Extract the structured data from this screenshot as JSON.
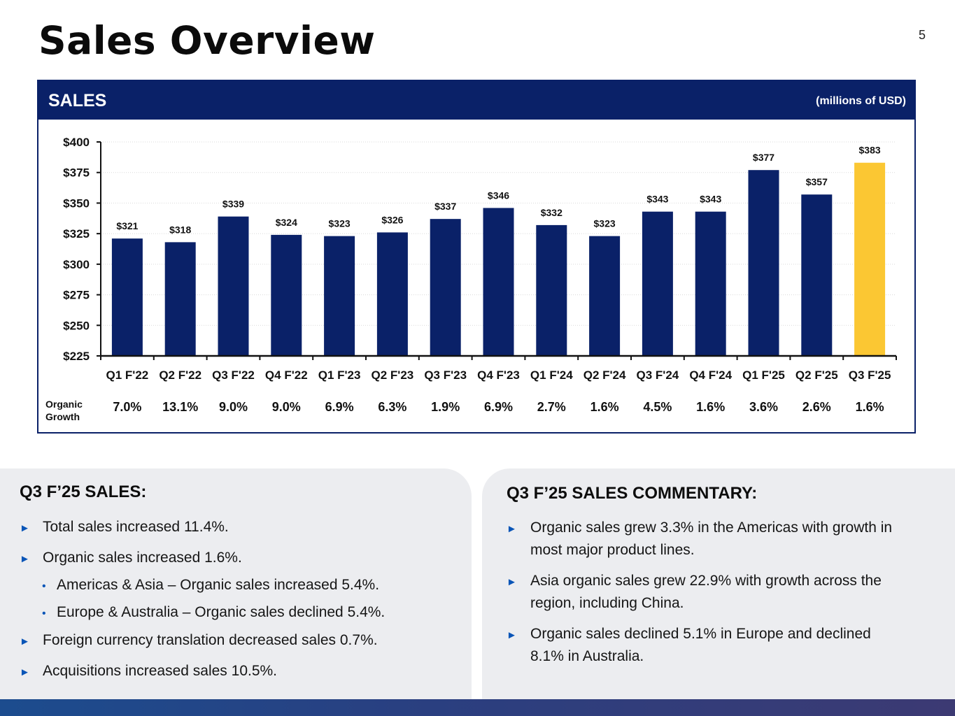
{
  "page": {
    "title": "Sales Overview",
    "page_number": "5"
  },
  "chart_header": {
    "title": "SALES",
    "unit": "(millions of USD)"
  },
  "chart_data": {
    "type": "bar",
    "categories": [
      "Q1 F'22",
      "Q2 F'22",
      "Q3 F'22",
      "Q4 F'22",
      "Q1 F'23",
      "Q2 F'23",
      "Q3 F'23",
      "Q4 F'23",
      "Q1 F'24",
      "Q2 F'24",
      "Q3 F'24",
      "Q4 F'24",
      "Q1 F'25",
      "Q2 F'25",
      "Q3 F'25"
    ],
    "values": [
      321,
      318,
      339,
      324,
      323,
      326,
      337,
      346,
      332,
      323,
      343,
      343,
      377,
      357,
      383
    ],
    "value_labels": [
      "$321",
      "$318",
      "$339",
      "$324",
      "$323",
      "$326",
      "$337",
      "$346",
      "$332",
      "$323",
      "$343",
      "$343",
      "$377",
      "$357",
      "$383"
    ],
    "ylim": [
      225,
      400
    ],
    "yticks": [
      225,
      250,
      275,
      300,
      325,
      350,
      375,
      400
    ],
    "ytick_labels": [
      "$225",
      "$250",
      "$275",
      "$300",
      "$325",
      "$350",
      "$375",
      "$400"
    ],
    "grid": true,
    "colors": {
      "bar": "#0a2168",
      "highlight": "#fbc733"
    },
    "highlight_index": 14,
    "organic_growth_label": [
      "Organic",
      "Growth"
    ],
    "organic_growth": [
      "7.0%",
      "13.1%",
      "9.0%",
      "9.0%",
      "6.9%",
      "6.3%",
      "1.9%",
      "6.9%",
      "2.7%",
      "1.6%",
      "4.5%",
      "1.6%",
      "3.6%",
      "2.6%",
      "1.6%"
    ]
  },
  "left_panel": {
    "heading": "Q3 F’25 SALES:",
    "items": [
      {
        "text": "Total sales increased 11.4%.",
        "level": 1
      },
      {
        "text": "Organic sales increased 1.6%.",
        "level": 1
      },
      {
        "text": "Americas & Asia – Organic sales increased 5.4%.",
        "level": 2
      },
      {
        "text": "Europe & Australia – Organic sales declined 5.4%.",
        "level": 2
      },
      {
        "text": "Foreign currency translation decreased sales 0.7%.",
        "level": 1
      },
      {
        "text": "Acquisitions increased sales 10.5%.",
        "level": 1
      }
    ]
  },
  "right_panel": {
    "heading": "Q3 F’25 SALES COMMENTARY:",
    "items": [
      {
        "line1": "Organic sales grew 3.3% in the Americas with growth in",
        "line2": "most major product lines."
      },
      {
        "line1": "Asia organic sales grew 22.9% with growth across the",
        "line2": "region, including China."
      },
      {
        "line1": "Organic sales declined 5.1% in Europe and declined",
        "line2": "8.1% in Australia."
      }
    ]
  },
  "icons": {
    "bullet_arrow": "►",
    "bullet_dot": "•"
  }
}
